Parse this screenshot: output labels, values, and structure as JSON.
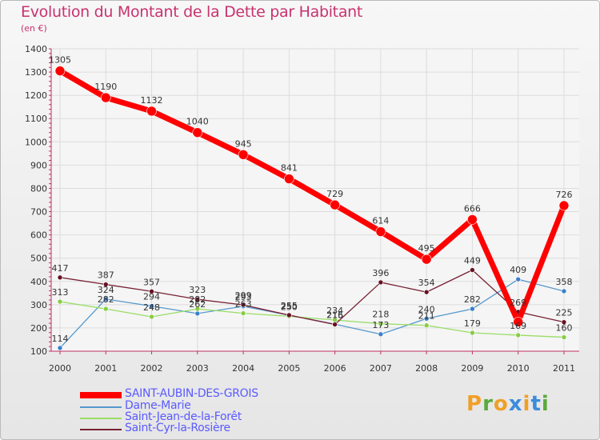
{
  "title": "Evolution du Montant de la Dette par Habitant",
  "subtitle": "(en €)",
  "logo": {
    "text": "Proxiti",
    "colors": [
      "#f0a028",
      "#5aaa3c",
      "#f0a028",
      "#3c8cdc",
      "#f0a028",
      "#3c8cdc",
      "#5aaa3c"
    ]
  },
  "chart_data": {
    "type": "line",
    "title": "Evolution du Montant de la Dette par Habitant",
    "ylabel": "(en €)",
    "x": [
      "2000",
      "2001",
      "2002",
      "2003",
      "2004",
      "2005",
      "2006",
      "2007",
      "2008",
      "2009",
      "2010",
      "2011"
    ],
    "ylim": [
      100,
      1400
    ],
    "yticks": [
      100,
      200,
      300,
      400,
      500,
      600,
      700,
      800,
      900,
      1000,
      1100,
      1200,
      1300,
      1400
    ],
    "grid": true,
    "legend_position": "bottom",
    "series": [
      {
        "name": "SAINT-AUBIN-DES-GROIS",
        "color": "#ff0000",
        "width": 7,
        "dot": 6,
        "values": [
          1305,
          1190,
          1132,
          1040,
          945,
          841,
          729,
          614,
          495,
          666,
          226,
          726
        ],
        "labels": [
          "1305",
          "1190",
          "1132",
          "1040",
          "945",
          "841",
          "729",
          "614",
          "495",
          "666",
          "",
          "726"
        ]
      },
      {
        "name": "Dame-Marie",
        "color": "#5599cc",
        "dotColor": "#3a7fcc",
        "width": 1.3,
        "dot": 3,
        "values": [
          114,
          324,
          294,
          262,
          293,
          255,
          216,
          173,
          240,
          282,
          409,
          358
        ],
        "labels": [
          "114",
          "324",
          "294",
          "262",
          "293",
          "255",
          "216",
          "173",
          "240",
          "282",
          "409",
          "358"
        ]
      },
      {
        "name": "Saint-Jean-de-la-Forêt",
        "color": "#99dd66",
        "dotColor": "#88cc44",
        "width": 1.3,
        "dot": 3,
        "values": [
          313,
          282,
          248,
          282,
          263,
          250,
          234,
          218,
          211,
          179,
          169,
          160
        ],
        "labels": [
          "313",
          "282",
          "248",
          "282",
          "263",
          "250",
          "234",
          "218",
          "211",
          "179",
          "169",
          "160"
        ]
      },
      {
        "name": "Saint-Cyr-la-Rosière",
        "color": "#772233",
        "dotColor": "#661122",
        "width": 1.3,
        "dot": 3,
        "values": [
          417,
          387,
          357,
          323,
          299,
          255,
          215,
          396,
          354,
          449,
          269,
          225
        ],
        "labels": [
          "417",
          "387",
          "357",
          "323",
          "299",
          "255",
          "215",
          "396",
          "354",
          "449",
          "269",
          "225"
        ]
      }
    ]
  }
}
